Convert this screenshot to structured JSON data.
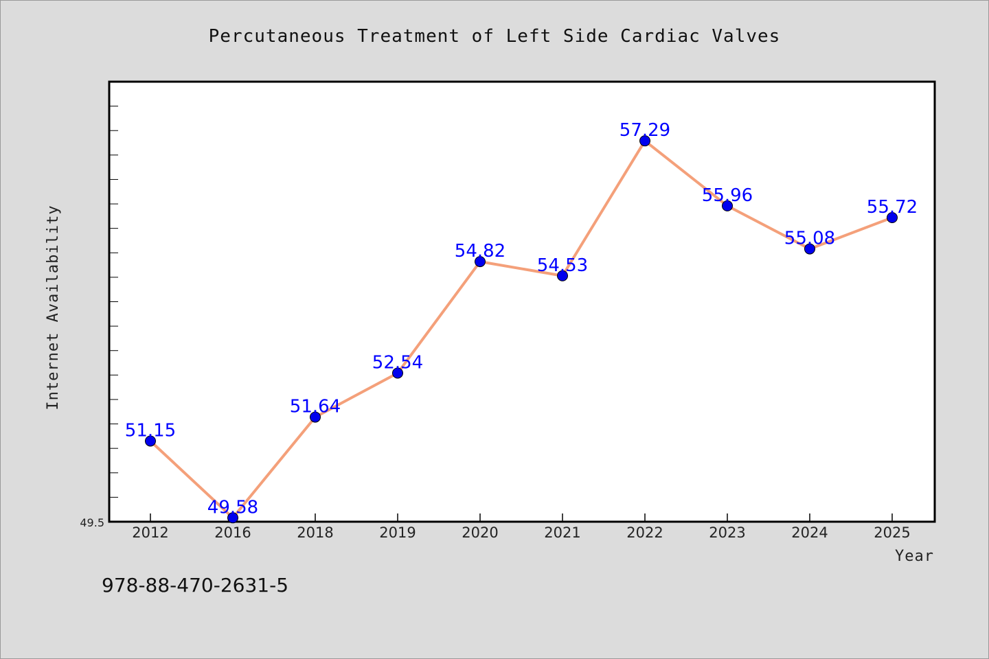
{
  "chart_data": {
    "type": "line",
    "title": "Percutaneous Treatment of Left Side Cardiac Valves",
    "xlabel": "Year",
    "ylabel": "Internet Availability",
    "categories": [
      "2012",
      "2016",
      "2018",
      "2019",
      "2020",
      "2021",
      "2022",
      "2023",
      "2024",
      "2025"
    ],
    "values": [
      51.15,
      49.58,
      51.64,
      52.54,
      54.82,
      54.53,
      57.29,
      55.96,
      55.08,
      55.72
    ],
    "data_labels": [
      "51.15",
      "49.58",
      "51.64",
      "52.54",
      "54.82",
      "54.53",
      "57.29",
      "55.96",
      "55.08",
      "55.72"
    ],
    "ylim": [
      49.5,
      58.5
    ],
    "y_tick_label": "49.5",
    "grid": false,
    "line_color": "#f4a07a",
    "marker_color": "#0000ee",
    "label_color": "#0000ff"
  },
  "footer": {
    "isbn": "978-88-470-2631-5"
  }
}
